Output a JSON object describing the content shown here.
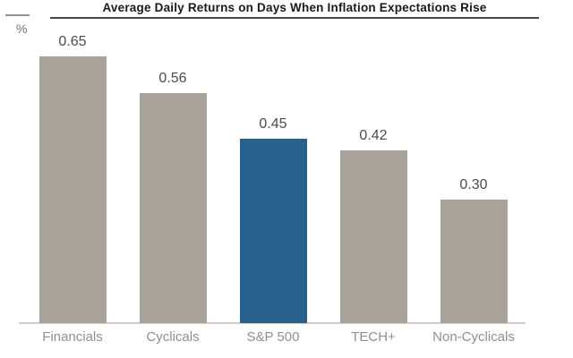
{
  "header": {
    "title": "Average Daily Returns on Days When Inflation Expectations Rise",
    "y_axis_unit": "%"
  },
  "chart_data": {
    "type": "bar",
    "title": "Average Daily Returns on Days When Inflation Expectations Rise",
    "xlabel": "",
    "ylabel": "%",
    "categories": [
      "Financials",
      "Cyclicals",
      "S&P 500",
      "TECH+",
      "Non-Cyclicals"
    ],
    "values": [
      0.65,
      0.56,
      0.45,
      0.42,
      0.3
    ],
    "value_labels": [
      "0.65",
      "0.56",
      "0.45",
      "0.42",
      "0.30"
    ],
    "ylim": [
      0,
      0.72
    ],
    "grid": false,
    "legend": false,
    "highlighted_category": "S&P 500",
    "colors": {
      "bar_default": "#a9a29b",
      "bar_highlight": "#28608c",
      "value_label_text": "#4c4c4c",
      "category_label_text": "#8f8f8f",
      "axis_line": "#cdcdcd",
      "title_text": "#1a1a1a",
      "title_underline": "#4a4a4a"
    }
  }
}
